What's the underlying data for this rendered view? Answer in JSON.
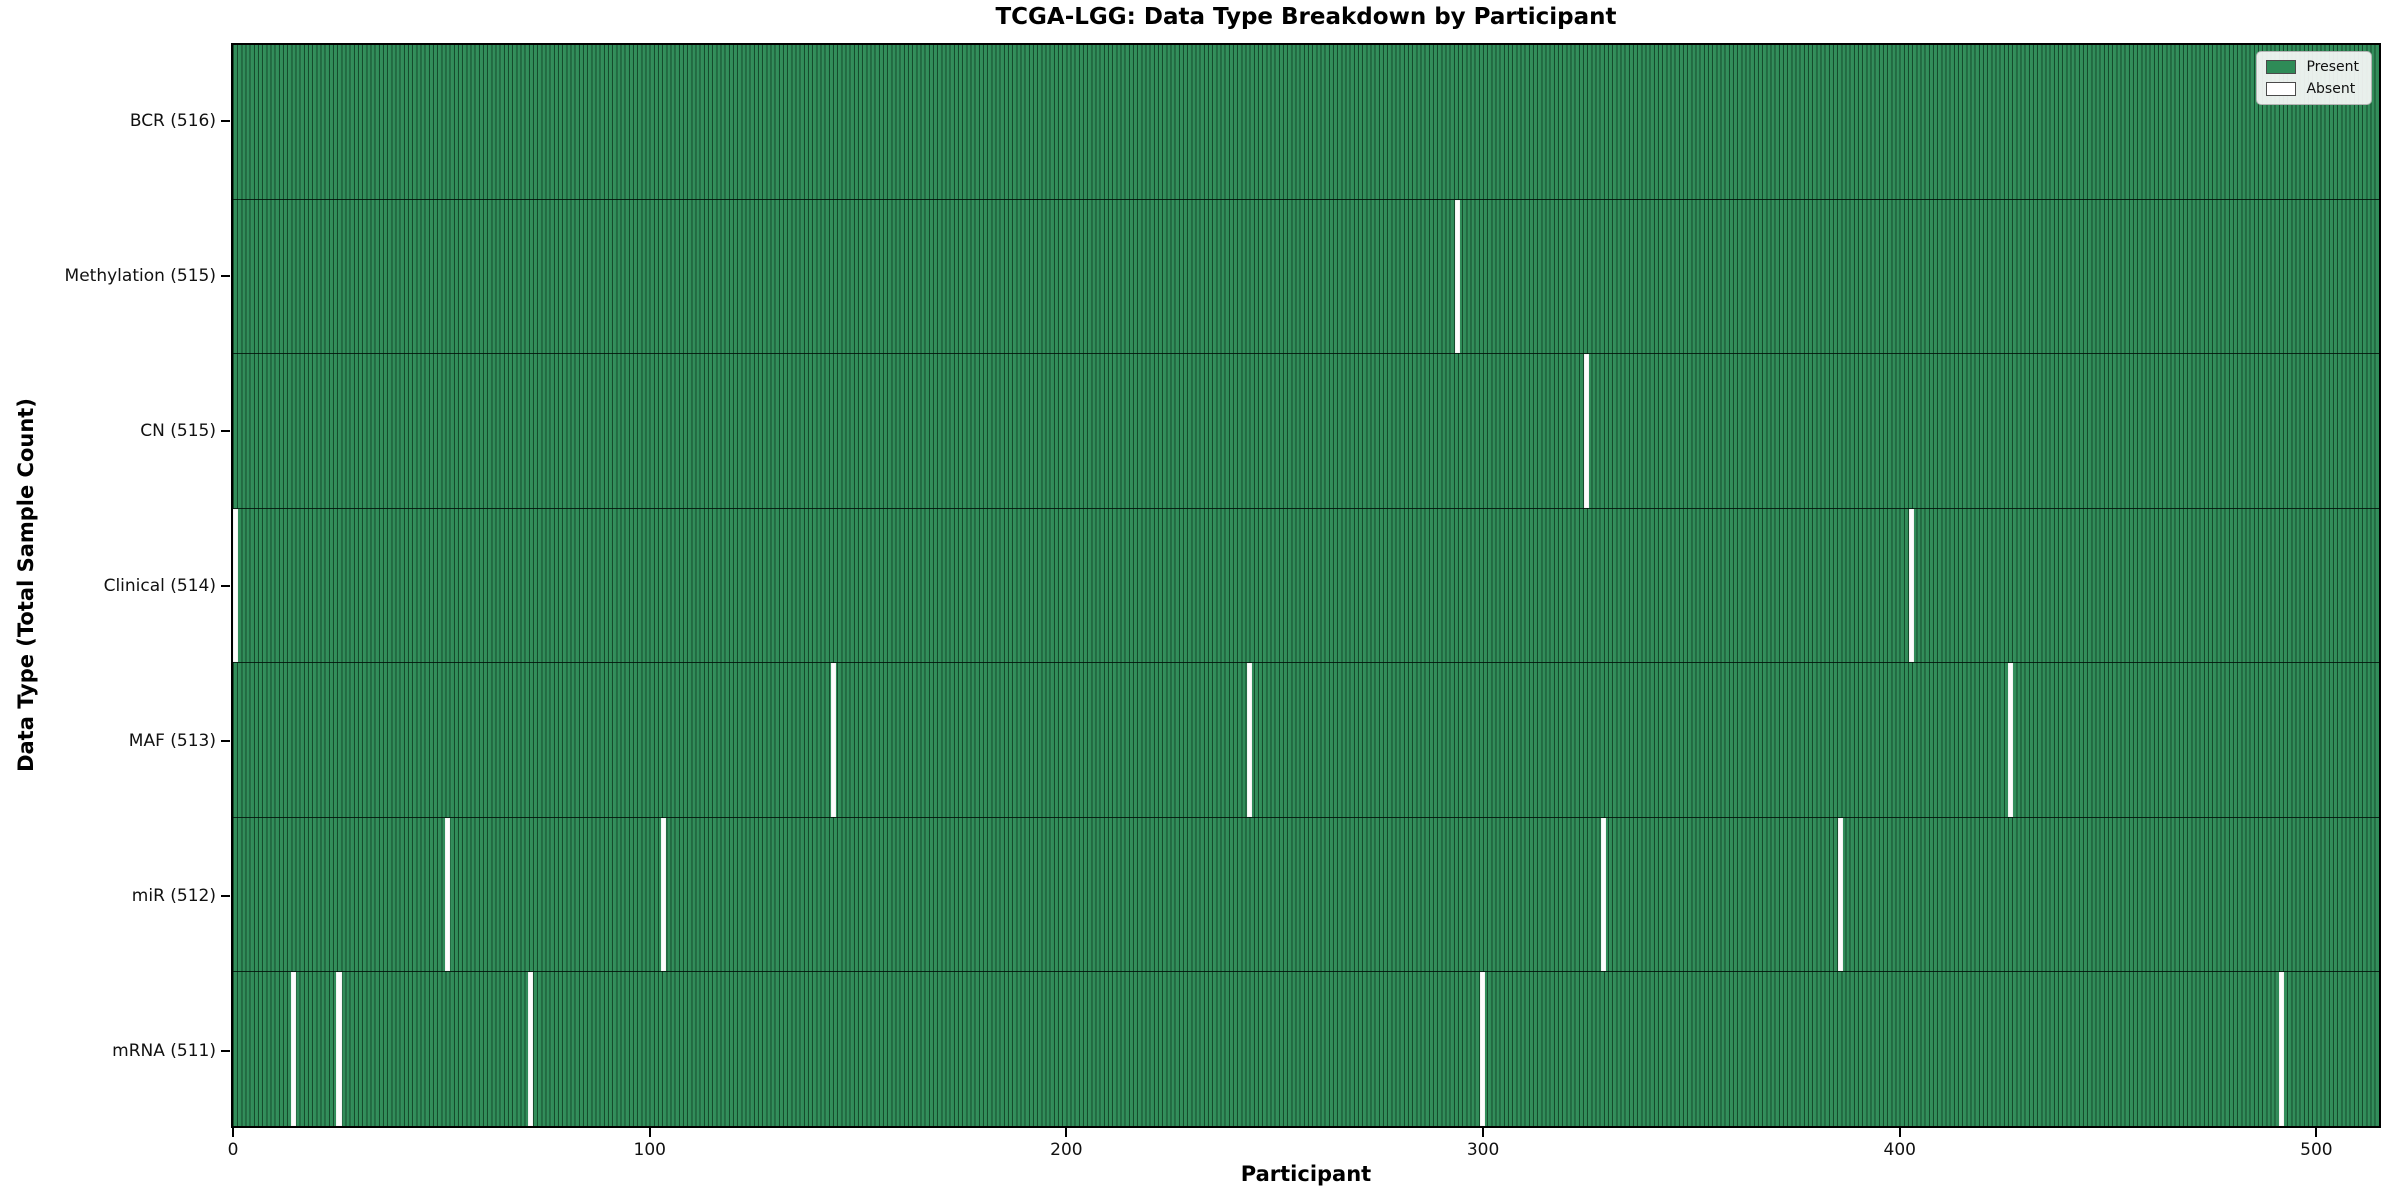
{
  "chart_data": {
    "type": "heatmap",
    "title": "TCGA-LGG: Data Type Breakdown by Participant",
    "xlabel": "Participant",
    "ylabel": "Data Type (Total Sample Count)",
    "n_participants": 516,
    "x_ticks": [
      0,
      100,
      200,
      300,
      400,
      500
    ],
    "xlim": [
      -0.5,
      515.5
    ],
    "grid": false,
    "legend_position": "upper right",
    "legend": [
      {
        "label": "Present",
        "color": "#2e8b57"
      },
      {
        "label": "Absent",
        "color": "#ffffff"
      }
    ],
    "rows": [
      {
        "label": "BCR (516)",
        "data_type": "BCR",
        "total": 516,
        "missing_participants": []
      },
      {
        "label": "Methylation (515)",
        "data_type": "Methylation",
        "total": 515,
        "missing_participants": [
          294
        ]
      },
      {
        "label": "CN (515)",
        "data_type": "CN",
        "total": 515,
        "missing_participants": [
          325
        ]
      },
      {
        "label": "Clinical (514)",
        "data_type": "Clinical",
        "total": 514,
        "missing_participants": [
          0,
          403
        ]
      },
      {
        "label": "MAF (513)",
        "data_type": "MAF",
        "total": 513,
        "missing_participants": [
          144,
          244,
          427
        ]
      },
      {
        "label": "miR (512)",
        "data_type": "miR",
        "total": 512,
        "missing_participants": [
          51,
          103,
          329,
          386
        ]
      },
      {
        "label": "mRNA (511)",
        "data_type": "mRNA",
        "total": 511,
        "missing_participants": [
          14,
          25,
          71,
          300,
          492
        ]
      }
    ]
  },
  "layout_note_colors": {
    "present_green": "#2e8b57",
    "absent_white": "#ffffff",
    "cell_edge": "rgba(0,22,10,0.55)"
  }
}
